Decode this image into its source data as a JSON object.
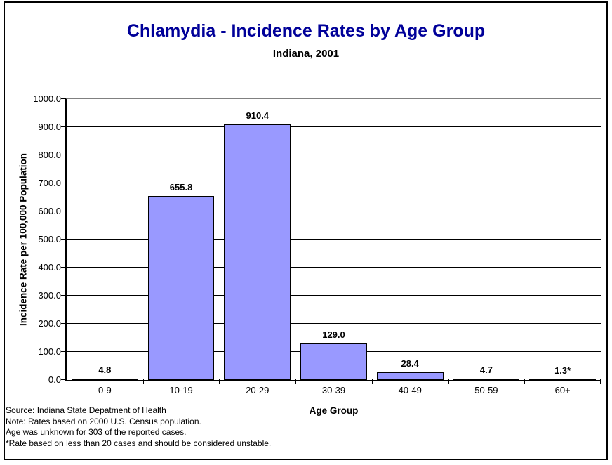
{
  "window": {
    "background": "#ffffff",
    "border_color": "#000000"
  },
  "chart_data": {
    "type": "bar",
    "title": "Chlamydia - Incidence Rates by Age Group",
    "subtitle": "Indiana, 2001",
    "title_color": "#000099",
    "categories": [
      "0-9",
      "10-19",
      "20-29",
      "30-39",
      "40-49",
      "50-59",
      "60+"
    ],
    "values": [
      4.8,
      655.8,
      910.4,
      129.0,
      28.4,
      4.7,
      1.3
    ],
    "data_labels": [
      "4.8",
      "655.8",
      "910.4",
      "129.0",
      "28.4",
      "4.7",
      "1.3*"
    ],
    "xlabel": "Age Group",
    "ylabel": "Incidence Rate per 100,000 Population",
    "ylim": [
      0,
      1000
    ],
    "ytick_values": [
      0,
      100,
      200,
      300,
      400,
      500,
      600,
      700,
      800,
      900,
      1000
    ],
    "ytick_labels": [
      "0.0",
      "100.0",
      "200.0",
      "300.0",
      "400.0",
      "500.0",
      "600.0",
      "700.0",
      "800.0",
      "900.0",
      "1000.0"
    ],
    "grid": true,
    "legend": "none",
    "bar_fill": "#9999FF",
    "bar_border": "#000000",
    "gridline_color": "#000000",
    "plot_border_color": "#808080"
  },
  "notes": [
    "Source: Indiana State Depatment of Health",
    "Note: Rates based on 2000 U.S. Census population.",
    "Age was unknown for 303 of the reported cases.",
    "*Rate based on less than 20 cases and should be considered unstable."
  ]
}
